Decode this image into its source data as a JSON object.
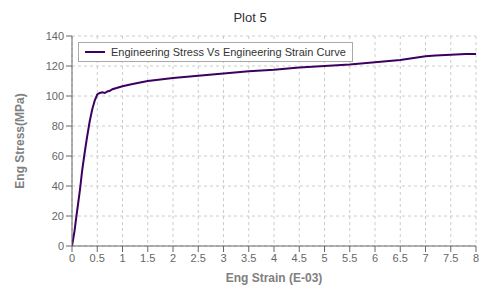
{
  "chart_data": {
    "type": "line",
    "title": "Plot 5",
    "x_label": "Eng Strain (E-03)",
    "y_label": "Eng Stress(MPa)",
    "x": [
      0.0,
      0.02,
      0.05,
      0.08,
      0.12,
      0.16,
      0.2,
      0.25,
      0.3,
      0.35,
      0.4,
      0.45,
      0.5,
      0.55,
      0.6,
      0.65,
      0.7,
      0.75,
      0.8,
      0.9,
      1.0,
      1.2,
      1.5,
      2.0,
      2.5,
      3.0,
      3.5,
      4.0,
      4.5,
      5.0,
      5.5,
      6.0,
      6.5,
      7.0,
      7.2,
      7.5,
      7.8,
      8.0
    ],
    "series": [
      {
        "name": "Engineering Stress Vs Engineering Strain Curve",
        "color": "#3d0060",
        "values": [
          0,
          4,
          10,
          18,
          28,
          38,
          50,
          62,
          73,
          83,
          91,
          97,
          101,
          102,
          102.5,
          102,
          103,
          103.5,
          104.5,
          105.5,
          106.5,
          108,
          110,
          112,
          113.5,
          115,
          116.5,
          117.5,
          119,
          120,
          121,
          122.5,
          124,
          126.5,
          127,
          127.5,
          128,
          128
        ]
      }
    ],
    "xlim": [
      0,
      8
    ],
    "ylim": [
      0,
      140
    ],
    "xticks": [
      0,
      0.5,
      1,
      1.5,
      2,
      2.5,
      3,
      3.5,
      4,
      4.5,
      5,
      5.5,
      6,
      6.5,
      7,
      7.5,
      8
    ],
    "yticks": [
      0,
      20,
      40,
      60,
      80,
      100,
      120,
      140
    ],
    "grid": true,
    "legend": "upper left"
  }
}
